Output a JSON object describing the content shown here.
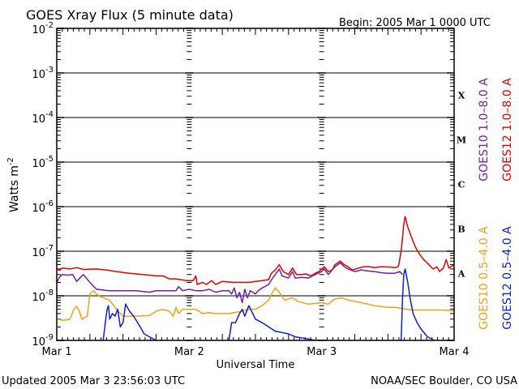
{
  "chart_data": {
    "type": "line",
    "title": "GOES Xray Flux (5 minute data)",
    "begin_label": "Begin:  2005 Mar 1 0000 UTC",
    "xlabel": "Universal Time",
    "ylabel": "Watts m",
    "ylabel_sup": "-2",
    "y_scale": "log",
    "ylim": [
      1e-09,
      0.01
    ],
    "xlim": [
      0,
      3
    ],
    "x_ticks": [
      {
        "x": 0,
        "label": "Mar 1"
      },
      {
        "x": 1,
        "label": "Mar 2"
      },
      {
        "x": 2,
        "label": "Mar 3"
      },
      {
        "x": 3,
        "label": "Mar 4"
      }
    ],
    "y_ticks": [
      {
        "exp": -2,
        "label": "10",
        "sup": "-2"
      },
      {
        "exp": -3,
        "label": "10",
        "sup": "-3"
      },
      {
        "exp": -4,
        "label": "10",
        "sup": "-4"
      },
      {
        "exp": -5,
        "label": "10",
        "sup": "-5"
      },
      {
        "exp": -6,
        "label": "10",
        "sup": "-6"
      },
      {
        "exp": -7,
        "label": "10",
        "sup": "-7"
      },
      {
        "exp": -8,
        "label": "10",
        "sup": "-8"
      },
      {
        "exp": -9,
        "label": "10",
        "sup": "-9"
      }
    ],
    "flare_classes": [
      {
        "label": "X",
        "exp": -3.5
      },
      {
        "label": "M",
        "exp": -4.5
      },
      {
        "label": "C",
        "exp": -5.5
      },
      {
        "label": "B",
        "exp": -6.5
      },
      {
        "label": "A",
        "exp": -7.5
      }
    ],
    "legend_right": [
      {
        "name": "GOES10 1.0–8.0 A",
        "color": "#7020a0"
      },
      {
        "name": "GOES12 1.0–8.0 A",
        "color": "#e00000"
      },
      {
        "name": "GOES10 0.5–4.0 A",
        "color": "#f0a020"
      },
      {
        "name": "GOES12 0.5–4.0 A",
        "color": "#1020d0"
      }
    ],
    "series": [
      {
        "name": "GOES12 1.0–8.0 A",
        "color": "#e00000",
        "points": [
          [
            0.0,
            4e-08
          ],
          [
            0.02,
            3.7e-08
          ],
          [
            0.04,
            4.2e-08
          ],
          [
            0.1,
            4e-08
          ],
          [
            0.15,
            4.3e-08
          ],
          [
            0.2,
            3.9e-08
          ],
          [
            0.3,
            4e-08
          ],
          [
            0.4,
            3.7e-08
          ],
          [
            0.45,
            3.5e-08
          ],
          [
            0.55,
            3.2e-08
          ],
          [
            0.65,
            3e-08
          ],
          [
            0.75,
            2.8e-08
          ],
          [
            0.8,
            2.8e-08
          ],
          [
            0.85,
            2.4e-08
          ],
          [
            0.9,
            2.4e-08
          ],
          [
            0.98,
            2.2e-08
          ],
          [
            1.03,
            2.2e-08
          ],
          [
            1.05,
            2.8e-08
          ],
          [
            1.06,
            1.8e-08
          ],
          [
            1.1,
            2e-08
          ],
          [
            1.13,
            1.8e-08
          ],
          [
            1.17,
            2.2e-08
          ],
          [
            1.2,
            1.8e-08
          ],
          [
            1.25,
            2.1e-08
          ],
          [
            1.33,
            2e-08
          ],
          [
            1.45,
            2e-08
          ],
          [
            1.55,
            2.2e-08
          ],
          [
            1.6,
            2.3e-08
          ],
          [
            1.62,
            3.2e-08
          ],
          [
            1.65,
            3.8e-08
          ],
          [
            1.68,
            5e-08
          ],
          [
            1.71,
            3.5e-08
          ],
          [
            1.75,
            3e-08
          ],
          [
            1.78,
            4.2e-08
          ],
          [
            1.81,
            3e-08
          ],
          [
            1.85,
            3e-08
          ],
          [
            1.88,
            3.1e-08
          ],
          [
            1.92,
            2.8e-08
          ],
          [
            1.95,
            3.2e-08
          ],
          [
            1.98,
            3.5e-08
          ],
          [
            2.0,
            4e-08
          ],
          [
            2.02,
            4.5e-08
          ],
          [
            2.05,
            3.5e-08
          ],
          [
            2.08,
            3.8e-08
          ],
          [
            2.1,
            5e-08
          ],
          [
            2.14,
            6e-08
          ],
          [
            2.17,
            5e-08
          ],
          [
            2.2,
            4.5e-08
          ],
          [
            2.23,
            3.8e-08
          ],
          [
            2.28,
            4.2e-08
          ],
          [
            2.32,
            4.5e-08
          ],
          [
            2.36,
            4.5e-08
          ],
          [
            2.4,
            4.3e-08
          ],
          [
            2.45,
            4.5e-08
          ],
          [
            2.52,
            4.4e-08
          ],
          [
            2.56,
            4.3e-08
          ],
          [
            2.58,
            4.6e-08
          ],
          [
            2.6,
            1e-07
          ],
          [
            2.62,
            4e-07
          ],
          [
            2.63,
            6e-07
          ],
          [
            2.65,
            3.5e-07
          ],
          [
            2.68,
            2e-07
          ],
          [
            2.71,
            1.2e-07
          ],
          [
            2.74,
            8.5e-08
          ],
          [
            2.77,
            6.5e-08
          ],
          [
            2.81,
            5e-08
          ],
          [
            2.84,
            4e-08
          ],
          [
            2.87,
            4.5e-08
          ],
          [
            2.89,
            3.5e-08
          ],
          [
            2.92,
            4.2e-08
          ],
          [
            2.94,
            6.5e-08
          ],
          [
            2.96,
            4.2e-08
          ],
          [
            3.0,
            5e-08
          ]
        ]
      },
      {
        "name": "GOES10 1.0–8.0 A",
        "color": "#7020a0",
        "points": [
          [
            0.0,
            2e-08
          ],
          [
            0.02,
            2.6e-08
          ],
          [
            0.04,
            3e-08
          ],
          [
            0.08,
            2.9e-08
          ],
          [
            0.12,
            3e-08
          ],
          [
            0.15,
            2.1e-08
          ],
          [
            0.18,
            2.6e-08
          ],
          [
            0.2,
            3e-08
          ],
          [
            0.25,
            2e-08
          ],
          [
            0.3,
            1.4e-08
          ],
          [
            0.4,
            1.3e-08
          ],
          [
            0.5,
            1.3e-08
          ],
          [
            0.6,
            1.3e-08
          ],
          [
            0.7,
            1.2e-08
          ],
          [
            0.75,
            1.3e-08
          ],
          [
            0.8,
            1.3e-08
          ],
          [
            0.85,
            1.3e-08
          ],
          [
            0.9,
            1.3e-08
          ],
          [
            0.92,
            1.6e-08
          ],
          [
            0.95,
            1.3e-08
          ],
          [
            1.0,
            1.4e-08
          ],
          [
            1.05,
            1.3e-08
          ],
          [
            1.1,
            1.3e-08
          ],
          [
            1.15,
            1.4e-08
          ],
          [
            1.2,
            1.2e-08
          ],
          [
            1.25,
            1.3e-08
          ],
          [
            1.3,
            1.3e-08
          ],
          [
            1.32,
            1.1e-08
          ],
          [
            1.34,
            1.5e-08
          ],
          [
            1.36,
            9e-09
          ],
          [
            1.38,
            1.2e-08
          ],
          [
            1.4,
            7e-09
          ],
          [
            1.42,
            1.4e-08
          ],
          [
            1.44,
            9e-09
          ],
          [
            1.46,
            1.3e-08
          ],
          [
            1.5,
            1.1e-08
          ],
          [
            1.52,
            1.3e-08
          ],
          [
            1.55,
            1.5e-08
          ],
          [
            1.6,
            1.8e-08
          ],
          [
            1.63,
            2.5e-08
          ],
          [
            1.65,
            3e-08
          ],
          [
            1.68,
            4e-08
          ],
          [
            1.7,
            2.8e-08
          ],
          [
            1.75,
            2.5e-08
          ],
          [
            1.78,
            3.5e-08
          ],
          [
            1.8,
            2.5e-08
          ],
          [
            1.85,
            2.6e-08
          ],
          [
            1.9,
            2.5e-08
          ],
          [
            1.95,
            3e-08
          ],
          [
            2.0,
            3.5e-08
          ],
          [
            2.02,
            4e-08
          ],
          [
            2.05,
            3e-08
          ],
          [
            2.1,
            4.5e-08
          ],
          [
            2.14,
            5.5e-08
          ],
          [
            2.17,
            4.5e-08
          ],
          [
            2.2,
            4e-08
          ],
          [
            2.25,
            3.5e-08
          ],
          [
            2.3,
            3.8e-08
          ],
          [
            2.35,
            3.6e-08
          ],
          [
            2.4,
            3.5e-08
          ],
          [
            2.45,
            3.3e-08
          ],
          [
            2.5,
            3.2e-08
          ],
          [
            2.55,
            3.2e-08
          ],
          [
            2.59,
            3.5e-08
          ],
          [
            2.61,
            3e-08
          ]
        ]
      },
      {
        "name": "GOES10 0.5–4.0 A",
        "color": "#f0a020",
        "points": [
          [
            0.0,
            3e-09
          ],
          [
            0.05,
            2.8e-09
          ],
          [
            0.1,
            3e-09
          ],
          [
            0.13,
            5e-09
          ],
          [
            0.15,
            5.8e-09
          ],
          [
            0.17,
            4.5e-09
          ],
          [
            0.19,
            3e-09
          ],
          [
            0.23,
            3.5e-09
          ],
          [
            0.25,
            1.1e-08
          ],
          [
            0.28,
            1.3e-08
          ],
          [
            0.3,
            1.1e-08
          ],
          [
            0.33,
            9.5e-09
          ],
          [
            0.4,
            8e-09
          ],
          [
            0.45,
            5e-09
          ],
          [
            0.5,
            3.5e-09
          ],
          [
            0.6,
            3.5e-09
          ],
          [
            0.7,
            3.6e-09
          ],
          [
            0.75,
            4.5e-09
          ],
          [
            0.8,
            5e-09
          ],
          [
            0.85,
            4.5e-09
          ],
          [
            0.88,
            3.5e-09
          ],
          [
            0.9,
            5.5e-09
          ],
          [
            0.92,
            4e-09
          ],
          [
            0.95,
            5e-09
          ],
          [
            1.0,
            5e-09
          ],
          [
            1.05,
            5e-09
          ],
          [
            1.1,
            4e-09
          ],
          [
            1.15,
            4.2e-09
          ],
          [
            1.2,
            4e-09
          ],
          [
            1.3,
            4e-09
          ],
          [
            1.4,
            4.5e-09
          ],
          [
            1.45,
            5e-09
          ],
          [
            1.5,
            5e-09
          ],
          [
            1.55,
            6e-09
          ],
          [
            1.6,
            8e-09
          ],
          [
            1.63,
            1.2e-08
          ],
          [
            1.65,
            1.5e-08
          ],
          [
            1.68,
            1.2e-08
          ],
          [
            1.72,
            8e-09
          ],
          [
            1.78,
            9e-09
          ],
          [
            1.82,
            7.5e-09
          ],
          [
            1.9,
            6.5e-09
          ],
          [
            2.0,
            7e-09
          ],
          [
            2.05,
            6.5e-09
          ],
          [
            2.1,
            8.5e-09
          ],
          [
            2.15,
            9e-09
          ],
          [
            2.2,
            8e-09
          ],
          [
            2.3,
            7e-09
          ],
          [
            2.4,
            6e-09
          ],
          [
            2.5,
            5.5e-09
          ],
          [
            2.56,
            5.5e-09
          ],
          [
            2.61,
            5.2e-09
          ],
          [
            2.64,
            5e-09
          ],
          [
            2.7,
            4.8e-09
          ],
          [
            2.8,
            4.8e-09
          ],
          [
            2.9,
            4.8e-09
          ],
          [
            3.0,
            4.6e-09
          ]
        ]
      },
      {
        "name": "GOES12 0.5–4.0 A",
        "color": "#1020d0",
        "points": [
          [
            0.35,
            1e-09
          ],
          [
            0.37,
            3e-09
          ],
          [
            0.38,
            5e-09
          ],
          [
            0.39,
            6e-09
          ],
          [
            0.4,
            3e-09
          ],
          [
            0.42,
            4e-09
          ],
          [
            0.44,
            3.5e-09
          ],
          [
            0.46,
            5e-09
          ],
          [
            0.48,
            2e-09
          ],
          [
            0.5,
            2.5e-09
          ],
          [
            0.52,
            6.5e-09
          ],
          [
            0.55,
            4.5e-09
          ],
          [
            0.58,
            3.5e-09
          ],
          [
            0.6,
            2.8e-09
          ],
          [
            0.63,
            2e-09
          ],
          [
            0.66,
            1.4e-09
          ],
          [
            0.7,
            1.2e-09
          ],
          [
            0.75,
            1e-09
          ],
          [
            1.3,
            1e-09
          ],
          [
            1.32,
            2.5e-09
          ],
          [
            1.35,
            2.5e-09
          ],
          [
            1.38,
            4e-09
          ],
          [
            1.4,
            5e-09
          ],
          [
            1.42,
            3.5e-09
          ],
          [
            1.45,
            6e-09
          ],
          [
            1.48,
            4e-09
          ],
          [
            1.5,
            3e-09
          ],
          [
            1.55,
            2.5e-09
          ],
          [
            1.6,
            2e-09
          ],
          [
            1.65,
            1.6e-09
          ],
          [
            1.7,
            1.5e-09
          ],
          [
            1.75,
            1.4e-09
          ],
          [
            1.8,
            1.2e-09
          ],
          [
            1.88,
            1.1e-09
          ],
          [
            1.95,
            1e-09
          ],
          [
            2.6,
            1e-09
          ],
          [
            2.61,
            8e-09
          ],
          [
            2.62,
            3e-08
          ],
          [
            2.63,
            4e-08
          ],
          [
            2.65,
            2e-08
          ],
          [
            2.67,
            8e-09
          ],
          [
            2.69,
            4e-09
          ],
          [
            2.72,
            2.5e-09
          ],
          [
            2.75,
            1.8e-09
          ],
          [
            2.78,
            1.4e-09
          ],
          [
            2.8,
            1.2e-09
          ],
          [
            2.85,
            1e-09
          ]
        ]
      }
    ]
  },
  "footer": {
    "updated": "Updated 2005 Mar  3 23:56:03 UTC",
    "credit": "NOAA/SEC Boulder, CO USA"
  }
}
